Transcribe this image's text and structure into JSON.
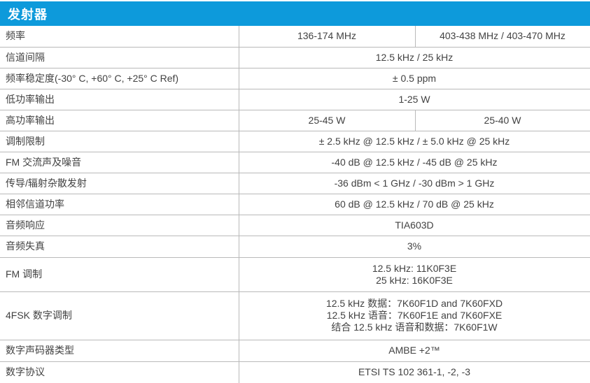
{
  "header": {
    "title": "发射器"
  },
  "colors": {
    "header_bg": "#0d9adb",
    "header_text": "#ffffff",
    "border": "#b9b9b9",
    "body_text": "#424242"
  },
  "table": {
    "rows": [
      {
        "label": "频率",
        "cells": [
          [
            "136-174 MHz"
          ],
          [
            "403-438 MHz / 403-470 MHz"
          ]
        ]
      },
      {
        "label": "信道间隔",
        "cells": [
          [
            "12.5 kHz / 25 kHz"
          ]
        ]
      },
      {
        "label": "频率稳定度(-30° C, +60° C, +25° C Ref)",
        "cells": [
          [
            "± 0.5 ppm"
          ]
        ]
      },
      {
        "label": "低功率输出",
        "cells": [
          [
            "1-25 W"
          ]
        ]
      },
      {
        "label": "高功率输出",
        "cells": [
          [
            "25-45 W"
          ],
          [
            "25-40 W"
          ]
        ]
      },
      {
        "label": "调制限制",
        "cells": [
          [
            "± 2.5 kHz @ 12.5 kHz / ± 5.0 kHz @ 25 kHz"
          ]
        ]
      },
      {
        "label": "FM 交流声及噪音",
        "cells": [
          [
            "-40 dB @ 12.5 kHz / -45 dB @ 25 kHz"
          ]
        ]
      },
      {
        "label": "传导/辐射杂散发射",
        "cells": [
          [
            "-36 dBm < 1 GHz / -30 dBm > 1 GHz"
          ]
        ]
      },
      {
        "label": "相邻信道功率",
        "cells": [
          [
            "60 dB @ 12.5 kHz / 70 dB @ 25 kHz"
          ]
        ]
      },
      {
        "label": "音频响应",
        "cells": [
          [
            "TIA603D"
          ]
        ]
      },
      {
        "label": "音频失真",
        "cells": [
          [
            "3%"
          ]
        ]
      },
      {
        "label": "FM 调制",
        "cells": [
          [
            "12.5 kHz: 11K0F3E",
            "25 kHz: 16K0F3E"
          ]
        ]
      },
      {
        "label": "4FSK 数字调制",
        "cells": [
          [
            "12.5 kHz 数据：7K60F1D and 7K60FXD",
            "12.5 kHz 语音：7K60F1E and 7K60FXE",
            "结合 12.5 kHz 语音和数据：7K60F1W"
          ]
        ]
      },
      {
        "label": "数字声码器类型",
        "cells": [
          [
            "AMBE +2™"
          ]
        ]
      },
      {
        "label": "数字协议",
        "cells": [
          [
            "ETSI TS 102 361-1, -2, -3"
          ]
        ]
      }
    ]
  }
}
